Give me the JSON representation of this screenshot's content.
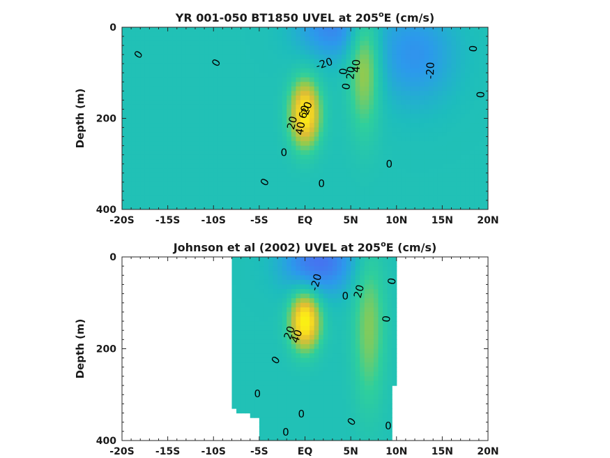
{
  "chart_data": [
    {
      "type": "heatmap",
      "subtype": "filled contour",
      "title": "YR 001-050 BT1850 UVEL at 205",
      "title_sup": "o",
      "title_suffix": "E (cm/s)",
      "xlabel": "",
      "ylabel": "Depth (m)",
      "xlim": [
        -20,
        20
      ],
      "ylim": [
        0,
        400
      ],
      "y_reversed": true,
      "xticks": [
        -20,
        -15,
        -10,
        -5,
        0,
        5,
        10,
        15,
        20
      ],
      "xtick_labels": [
        "-20S",
        "-15S",
        "-10S",
        "-5S",
        "EQ",
        "5N",
        "10N",
        "15N",
        "20N"
      ],
      "yticks": [
        0,
        200,
        400
      ],
      "ytick_labels": [
        "0",
        "200",
        "400"
      ],
      "data_lon_range": [
        -20,
        20
      ],
      "features": [
        {
          "name": "equatorial undercurrent",
          "lat": 0,
          "depth": 190,
          "peak": 80
        },
        {
          "name": "surface westward current",
          "lat": 3,
          "depth": 0,
          "peak": -30
        },
        {
          "name": "countercurrent",
          "lat": 6.5,
          "depth": 80,
          "peak": 40
        },
        {
          "name": "north westward current",
          "lat": 12,
          "depth": 60,
          "peak": -25
        }
      ],
      "contour_labels": [
        {
          "text": "0",
          "lat": -18.2,
          "depth": 60,
          "rot": -55
        },
        {
          "text": "0",
          "lat": -9.7,
          "depth": 78,
          "rot": -60
        },
        {
          "text": "-20",
          "lat": 2.1,
          "depth": 80,
          "rot": -18
        },
        {
          "text": "0",
          "lat": 4.2,
          "depth": 97,
          "rot": -85
        },
        {
          "text": "0",
          "lat": 4.5,
          "depth": 130,
          "rot": -80
        },
        {
          "text": "20",
          "lat": 5.0,
          "depth": 100,
          "rot": -85
        },
        {
          "text": "40",
          "lat": 5.6,
          "depth": 85,
          "rot": -88
        },
        {
          "text": "-20",
          "lat": 13.7,
          "depth": 95,
          "rot": -88
        },
        {
          "text": "0",
          "lat": 18.4,
          "depth": 47,
          "rot": -85
        },
        {
          "text": "0",
          "lat": 19.2,
          "depth": 148,
          "rot": -88
        },
        {
          "text": "0",
          "lat": 9.2,
          "depth": 300,
          "rot": 0
        },
        {
          "text": "0",
          "lat": -2.3,
          "depth": 275,
          "rot": 0
        },
        {
          "text": "0",
          "lat": -4.4,
          "depth": 340,
          "rot": -60
        },
        {
          "text": "0",
          "lat": 1.8,
          "depth": 343,
          "rot": 0
        },
        {
          "text": "20",
          "lat": -1.4,
          "depth": 210,
          "rot": -75
        },
        {
          "text": "20",
          "lat": 0.2,
          "depth": 178,
          "rot": -70
        },
        {
          "text": "40",
          "lat": -0.5,
          "depth": 222,
          "rot": -80
        },
        {
          "text": "60",
          "lat": -0.1,
          "depth": 186,
          "rot": -75
        }
      ]
    },
    {
      "type": "heatmap",
      "subtype": "filled contour",
      "title": "Johnson et al (2002) UVEL at 205",
      "title_sup": "o",
      "title_suffix": "E (cm/s)",
      "xlabel": "",
      "ylabel": "Depth (m)",
      "xlim": [
        -20,
        20
      ],
      "ylim": [
        0,
        400
      ],
      "y_reversed": true,
      "xticks": [
        -20,
        -15,
        -10,
        -5,
        0,
        5,
        10,
        15,
        20
      ],
      "xtick_labels": [
        "-20S",
        "-15S",
        "-10S",
        "-5S",
        "EQ",
        "5N",
        "10N",
        "15N",
        "20N"
      ],
      "yticks": [
        0,
        200,
        400
      ],
      "ytick_labels": [
        "0",
        "200",
        "400"
      ],
      "data_lon_range": [
        -8,
        10
      ],
      "features": [
        {
          "name": "equatorial undercurrent",
          "lat": 0,
          "depth": 140,
          "peak": 85
        },
        {
          "name": "surface westward current",
          "lat": 1.5,
          "depth": 10,
          "peak": -40
        },
        {
          "name": "countercurrent",
          "lat": 7,
          "depth": 150,
          "peak": 30
        }
      ],
      "contour_labels": [
        {
          "text": "-20",
          "lat": 1.2,
          "depth": 55,
          "rot": -75
        },
        {
          "text": "0",
          "lat": 4.4,
          "depth": 85,
          "rot": 0
        },
        {
          "text": "20",
          "lat": 5.9,
          "depth": 75,
          "rot": -75
        },
        {
          "text": "0",
          "lat": 9.5,
          "depth": 53,
          "rot": -80
        },
        {
          "text": "0",
          "lat": 8.9,
          "depth": 135,
          "rot": -85
        },
        {
          "text": "20",
          "lat": -1.7,
          "depth": 165,
          "rot": -70
        },
        {
          "text": "40",
          "lat": -0.9,
          "depth": 173,
          "rot": -70
        },
        {
          "text": "0",
          "lat": -3.2,
          "depth": 225,
          "rot": -55
        },
        {
          "text": "0",
          "lat": -5.2,
          "depth": 298,
          "rot": 0
        },
        {
          "text": "0",
          "lat": -0.4,
          "depth": 342,
          "rot": 0
        },
        {
          "text": "0",
          "lat": -2.1,
          "depth": 382,
          "rot": 0
        },
        {
          "text": "0",
          "lat": 5.1,
          "depth": 359,
          "rot": -55
        },
        {
          "text": "0",
          "lat": 9.1,
          "depth": 368,
          "rot": 0
        }
      ]
    }
  ],
  "colormap": [
    "#3e26a8",
    "#4771f0",
    "#2c99ec",
    "#1dbdbd",
    "#2fcf9c",
    "#99ca4a",
    "#e0bd34",
    "#fbe11c",
    "#f9fb0e"
  ],
  "color_range": [
    -60,
    90
  ]
}
